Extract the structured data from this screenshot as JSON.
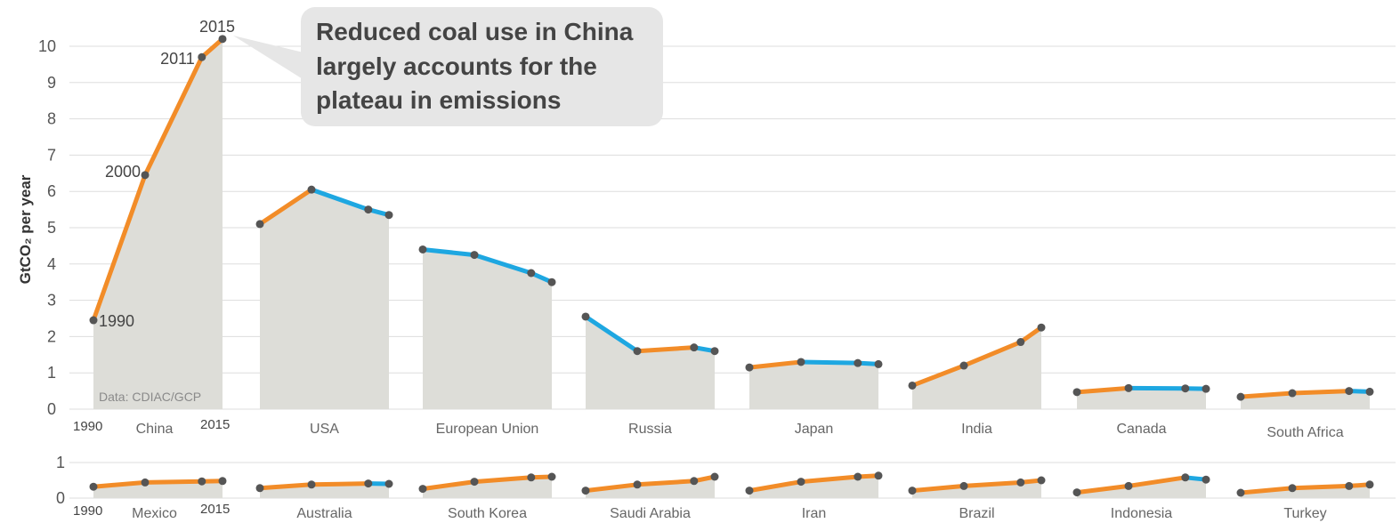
{
  "chart_data": {
    "type": "line",
    "ylabel": "GtCO₂ per year",
    "source": "Data: CDIAC/GCP",
    "annotation": {
      "lines": [
        "Reduced coal use in China",
        "largely accounts for the",
        "plateau in emissions"
      ]
    },
    "year_labels": {
      "start": "1990",
      "end": "2015"
    },
    "point_years": [
      1990,
      2000,
      2011,
      2015
    ],
    "china_year_labels": [
      "1990",
      "2000",
      "2011",
      "2015"
    ],
    "colors": {
      "increase": "#F28C28",
      "decrease": "#1EA7E1",
      "area": "#DDDDD8",
      "marker": "#555555",
      "grid": "#DDDDDD",
      "callout_bg": "#E6E6E6"
    },
    "panels": [
      {
        "name": "top",
        "yticks": [
          "0",
          "1",
          "2",
          "3",
          "4",
          "5",
          "6",
          "7",
          "8",
          "9",
          "10"
        ],
        "ylim": [
          0,
          10.5
        ],
        "series": [
          {
            "name": "China",
            "values": [
              2.45,
              6.45,
              9.7,
              10.2
            ]
          },
          {
            "name": "USA",
            "values": [
              5.1,
              6.05,
              5.5,
              5.35
            ]
          },
          {
            "name": "European Union",
            "values": [
              4.4,
              4.25,
              3.75,
              3.5
            ]
          },
          {
            "name": "Russia",
            "values": [
              2.55,
              1.6,
              1.7,
              1.6
            ]
          },
          {
            "name": "Japan",
            "values": [
              1.15,
              1.3,
              1.27,
              1.24
            ]
          },
          {
            "name": "India",
            "values": [
              0.65,
              1.2,
              1.85,
              2.25
            ]
          },
          {
            "name": "Canada",
            "values": [
              0.47,
              0.58,
              0.57,
              0.56
            ]
          },
          {
            "name": "South Africa",
            "values": [
              0.34,
              0.44,
              0.5,
              0.48
            ]
          }
        ]
      },
      {
        "name": "bottom",
        "yticks": [
          "0",
          "1"
        ],
        "ylim": [
          0,
          1
        ],
        "series": [
          {
            "name": "Mexico",
            "values": [
              0.32,
              0.44,
              0.47,
              0.48
            ]
          },
          {
            "name": "Australia",
            "values": [
              0.28,
              0.38,
              0.41,
              0.4
            ]
          },
          {
            "name": "South Korea",
            "values": [
              0.26,
              0.46,
              0.58,
              0.6
            ]
          },
          {
            "name": "Saudi Arabia",
            "values": [
              0.21,
              0.38,
              0.48,
              0.6
            ]
          },
          {
            "name": "Iran",
            "values": [
              0.21,
              0.46,
              0.6,
              0.63
            ]
          },
          {
            "name": "Brazil",
            "values": [
              0.21,
              0.34,
              0.44,
              0.5
            ]
          },
          {
            "name": "Indonesia",
            "values": [
              0.16,
              0.34,
              0.58,
              0.52
            ]
          },
          {
            "name": "Turkey",
            "values": [
              0.15,
              0.28,
              0.34,
              0.38
            ]
          }
        ]
      }
    ]
  }
}
